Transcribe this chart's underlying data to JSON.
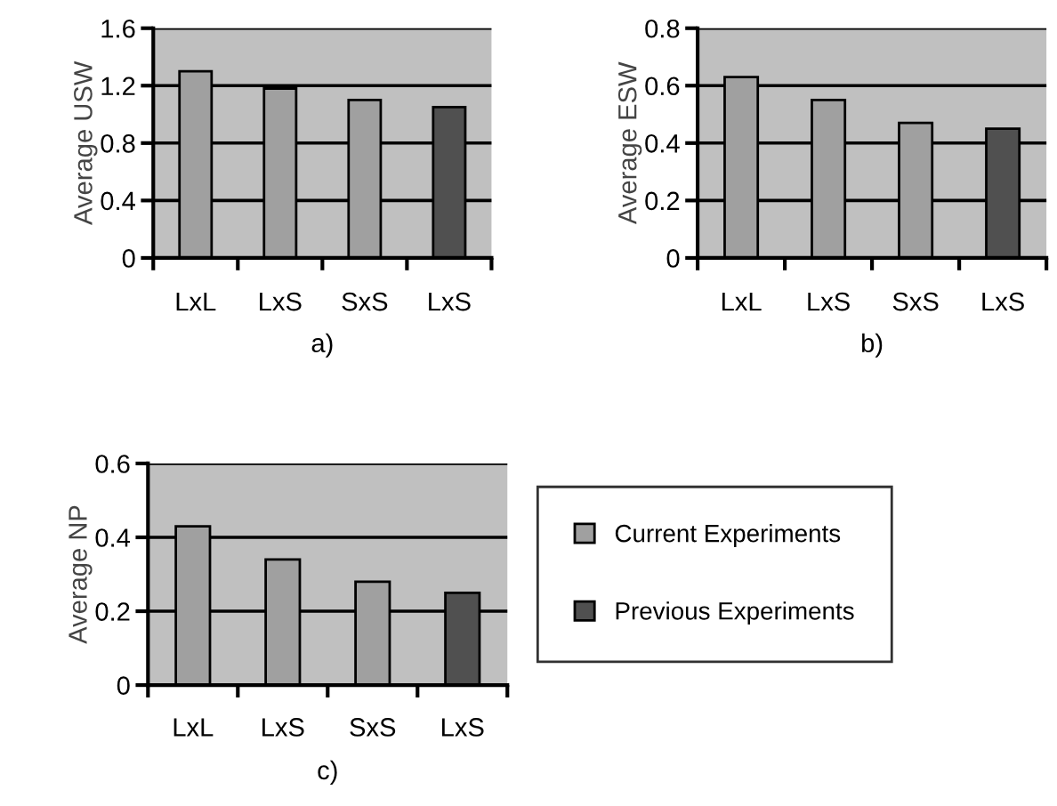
{
  "chart_data": [
    {
      "type": "bar",
      "xlabel": "a)",
      "ylabel": "Average USW",
      "categories": [
        "LxL",
        "LxS",
        "SxS",
        "LxS"
      ],
      "series": [
        {
          "color": "#a0a0a0",
          "values": [
            1.3,
            1.18,
            1.1,
            null
          ]
        },
        {
          "color": "#505050",
          "values": [
            null,
            null,
            null,
            1.05
          ]
        }
      ],
      "ylim": [
        0,
        1.6
      ],
      "yticks": [
        0,
        0.4,
        0.8,
        1.2,
        1.6
      ],
      "grid": "y"
    },
    {
      "type": "bar",
      "xlabel": "b)",
      "ylabel": "Average ESW",
      "categories": [
        "LxL",
        "LxS",
        "SxS",
        "LxS"
      ],
      "series": [
        {
          "color": "#a0a0a0",
          "values": [
            0.63,
            0.55,
            0.47,
            null
          ]
        },
        {
          "color": "#505050",
          "values": [
            null,
            null,
            null,
            0.45
          ]
        }
      ],
      "ylim": [
        0,
        0.8
      ],
      "yticks": [
        0,
        0.2,
        0.4,
        0.6,
        0.8
      ],
      "grid": "y"
    },
    {
      "type": "bar",
      "xlabel": "c)",
      "ylabel": "Average NP",
      "categories": [
        "LxL",
        "LxS",
        "SxS",
        "LxS"
      ],
      "series": [
        {
          "name": "Current Experiments",
          "color": "#a0a0a0",
          "values": [
            0.43,
            0.34,
            0.28,
            null
          ]
        },
        {
          "name": "Previous Experiments",
          "color": "#505050",
          "values": [
            null,
            null,
            null,
            0.25
          ]
        }
      ],
      "ylim": [
        0,
        0.6
      ],
      "yticks": [
        0,
        0.2,
        0.4,
        0.6
      ],
      "grid": "y",
      "legend": "right"
    }
  ]
}
